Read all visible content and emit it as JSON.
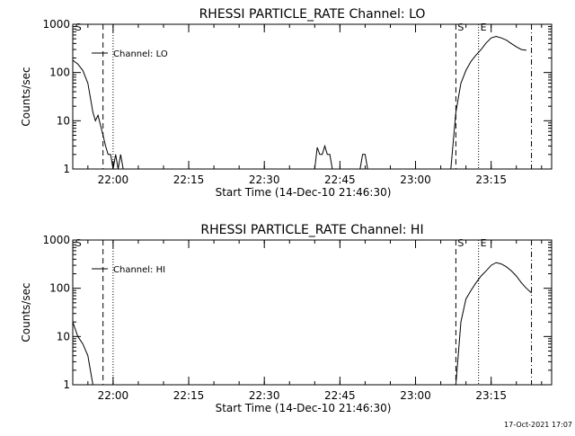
{
  "footer": {
    "timestamp": "17-Oct-2021 17:07"
  },
  "chart_data": [
    {
      "type": "line",
      "title": "RHESSI PARTICLE_RATE Channel: LO",
      "xlabel": "Start Time (14-Dec-10 21:46:30)",
      "ylabel": "Counts/sec",
      "yscale": "log",
      "ylim": [
        1,
        1000
      ],
      "xlim": [
        "21:52",
        "23:27"
      ],
      "x_ticks": [
        "22:00",
        "22:15",
        "22:30",
        "22:45",
        "23:00",
        "23:15"
      ],
      "y_ticks": [
        "1",
        "10",
        "100",
        "1000"
      ],
      "legend": {
        "label": "Channel: LO",
        "position": "top-left"
      },
      "series": [
        {
          "name": "Channel: LO",
          "segments": [
            {
              "x": [
                "21:52",
                "21:53",
                "21:54",
                "21:55",
                "21:55:30",
                "21:56",
                "21:56:30",
                "21:57",
                "21:57:30",
                "21:58",
                "21:58:30",
                "21:59",
                "21:59:30",
                "22:00",
                "22:00:30",
                "22:01",
                "22:01:30",
                "22:02"
              ],
              "y": [
                180,
                150,
                110,
                60,
                30,
                15,
                10,
                13,
                8,
                5,
                3,
                2,
                2,
                1,
                2,
                1,
                2,
                1
              ]
            },
            {
              "x": [
                "22:40",
                "22:40:30",
                "22:41",
                "22:41:30",
                "22:42",
                "22:42:30",
                "22:43",
                "22:43:30",
                "22:44:30"
              ],
              "y": [
                1,
                2.8,
                2,
                2,
                3,
                2,
                2,
                1,
                1
              ]
            },
            {
              "x": [
                "22:49",
                "22:49:30",
                "22:50",
                "22:50:30"
              ],
              "y": [
                1,
                2,
                2,
                1
              ]
            },
            {
              "x": [
                "23:07",
                "23:08",
                "23:09",
                "23:10",
                "23:11",
                "23:12",
                "23:13",
                "23:14",
                "23:15",
                "23:16",
                "23:17",
                "23:18",
                "23:19",
                "23:20",
                "23:21",
                "23:22"
              ],
              "y": [
                1,
                15,
                60,
                110,
                170,
                230,
                300,
                410,
                520,
                560,
                520,
                470,
                400,
                340,
                300,
                290
              ]
            }
          ]
        }
      ],
      "markers": [
        {
          "x": "21:52:30",
          "style": "label",
          "label": "S"
        },
        {
          "x": "21:58",
          "style": "dashed"
        },
        {
          "x": "22:00",
          "style": "dotted"
        },
        {
          "x": "23:08",
          "style": "dashed",
          "label": "S"
        },
        {
          "x": "23:12:30",
          "style": "dotted",
          "label": "E"
        },
        {
          "x": "23:23",
          "style": "dashdot"
        }
      ]
    },
    {
      "type": "line",
      "title": "RHESSI PARTICLE_RATE Channel: HI",
      "xlabel": "Start Time (14-Dec-10 21:46:30)",
      "ylabel": "Counts/sec",
      "yscale": "log",
      "ylim": [
        1,
        1000
      ],
      "xlim": [
        "21:52",
        "23:27"
      ],
      "x_ticks": [
        "22:00",
        "22:15",
        "22:30",
        "22:45",
        "23:00",
        "23:15"
      ],
      "y_ticks": [
        "1",
        "10",
        "100",
        "1000"
      ],
      "legend": {
        "label": "Channel: HI",
        "position": "top-left"
      },
      "series": [
        {
          "name": "Channel: HI",
          "segments": [
            {
              "x": [
                "21:52",
                "21:53",
                "21:54",
                "21:55",
                "21:56"
              ],
              "y": [
                20,
                10,
                7,
                4,
                1
              ]
            },
            {
              "x": [
                "23:08",
                "23:09",
                "23:10",
                "23:11",
                "23:12",
                "23:13",
                "23:14",
                "23:15",
                "23:16",
                "23:17",
                "23:18",
                "23:19",
                "23:20",
                "23:21",
                "23:22",
                "23:23"
              ],
              "y": [
                1,
                20,
                60,
                90,
                130,
                180,
                230,
                300,
                340,
                320,
                280,
                230,
                180,
                130,
                100,
                80
              ]
            }
          ]
        }
      ],
      "markers": [
        {
          "x": "21:52:30",
          "style": "label",
          "label": "S"
        },
        {
          "x": "21:58",
          "style": "dashed"
        },
        {
          "x": "22:00",
          "style": "dotted"
        },
        {
          "x": "23:08",
          "style": "dashed",
          "label": "S"
        },
        {
          "x": "23:12:30",
          "style": "dotted",
          "label": "E"
        },
        {
          "x": "23:23",
          "style": "dashdot"
        }
      ]
    }
  ]
}
